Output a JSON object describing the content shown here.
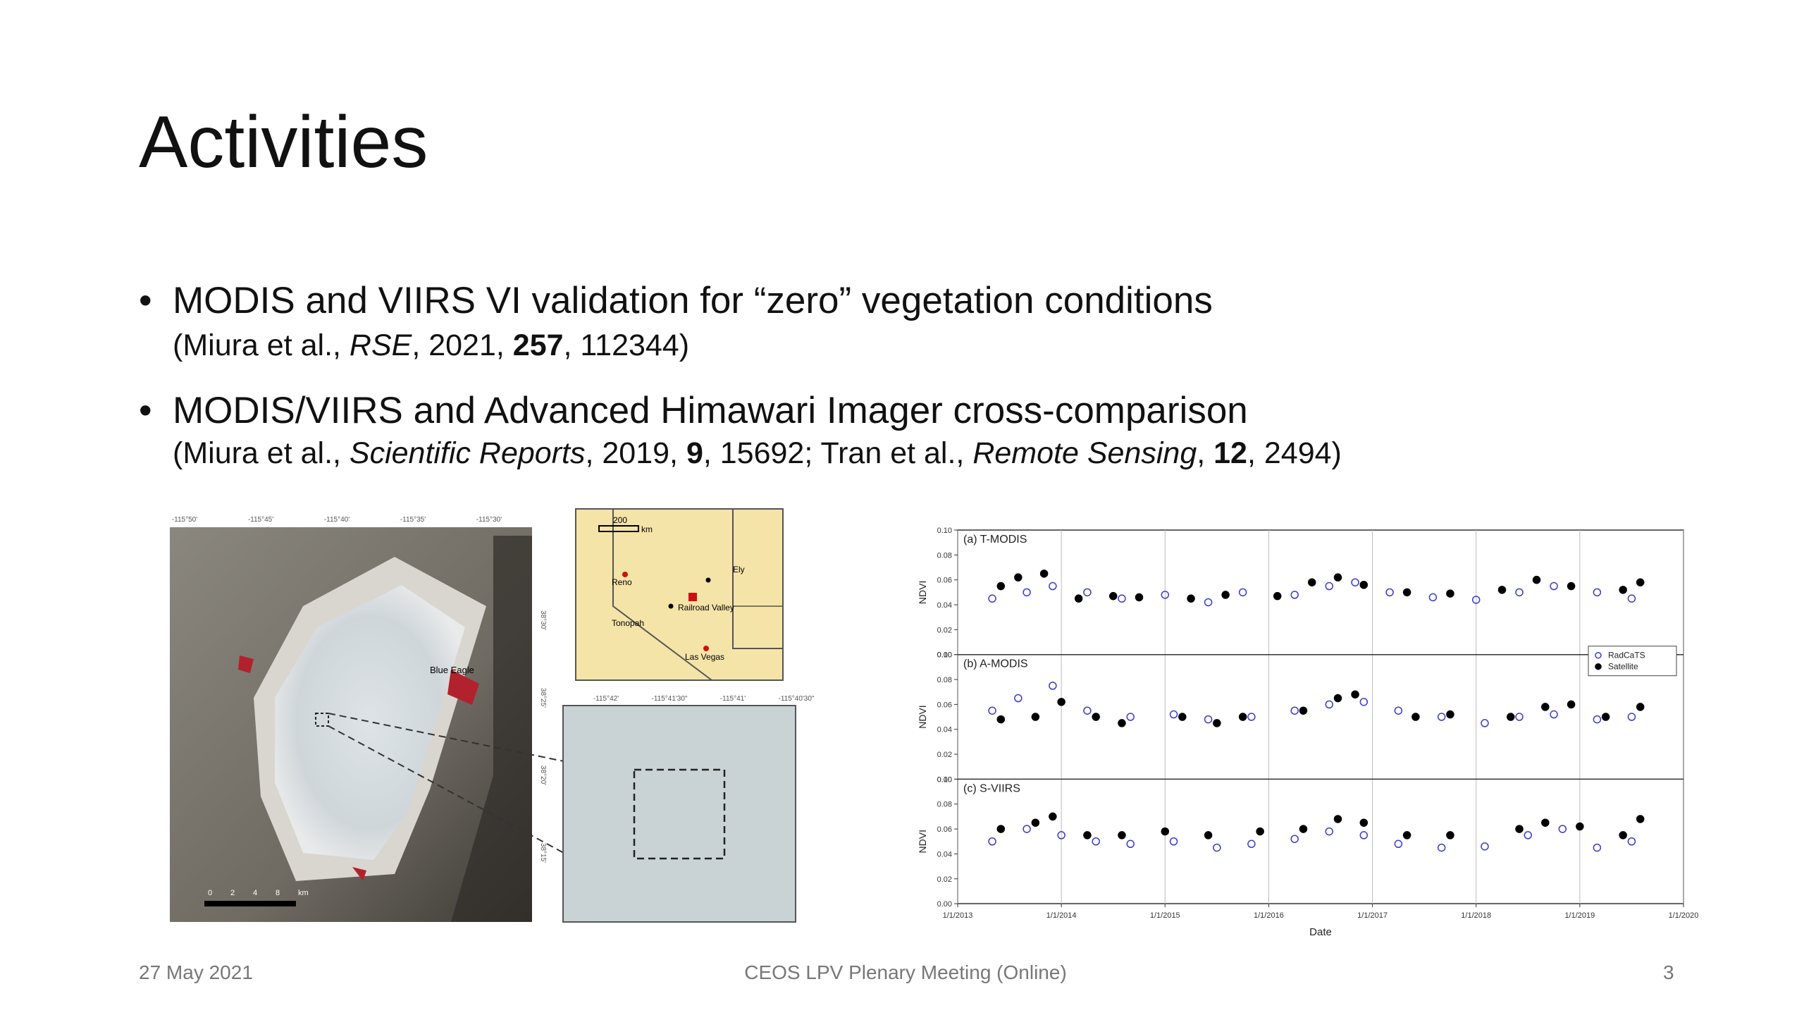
{
  "slide": {
    "title": "Activities",
    "bullets": [
      {
        "text": "MODIS and VIIRS VI validation for “zero” vegetation conditions",
        "citation": [
          "(Miura et al., ",
          "RSE",
          ", 2021, ",
          "257",
          ", 112344)"
        ]
      },
      {
        "text": "MODIS/VIIRS and Advanced Himawari Imager cross-comparison",
        "citation": [
          "(Miura et al., ",
          "Scientific Reports",
          ", 2019, ",
          "9",
          ", 15692; Tran et al., ",
          "Remote Sensing",
          ", ",
          "12",
          ", 2494)"
        ]
      }
    ],
    "footer": {
      "date": "27 May 2021",
      "center": "CEOS LPV Plenary Meeting (Online)",
      "page": "3"
    }
  },
  "figures": {
    "site_map": {
      "top_labels": [
        "-115°50'",
        "-115°45'",
        "-115°40'",
        "-115°35'",
        "-115°30'"
      ],
      "side_labels": [
        "38°30'",
        "38°25'",
        "38°20'",
        "38°15'"
      ],
      "site_label": "Blue Eagle",
      "scale": [
        "0",
        "2",
        "4",
        "8",
        "km"
      ]
    },
    "inset_map": {
      "scale": [
        "200",
        "km"
      ],
      "places": [
        "Reno",
        "Ely",
        "Railroad Valley",
        "Tonopah",
        "Las Vegas"
      ]
    },
    "zoom_map": {
      "top_labels": [
        "-115°42'",
        "-115°41'30\"",
        "-115°41'",
        "-115°40'30\""
      ]
    }
  },
  "chart_data": [
    {
      "type": "scatter",
      "title": "(a) T-MODIS",
      "ylabel": "NDVI",
      "xlim": [
        "1/1/2013",
        "1/1/2020"
      ],
      "ylim": [
        0,
        0.1
      ],
      "yticks": [
        {
          "value": 0,
          "label": "0.00"
        },
        0.02,
        0.04,
        0.06,
        0.08,
        {
          "value": 0.1,
          "label": "0.10"
        }
      ],
      "series": [
        {
          "name": "RadCaTS",
          "color": "#3a3ad0",
          "marker": "open",
          "x": [
            "5/1/2013",
            "9/1/2013",
            "12/1/2013",
            "4/1/2014",
            "8/1/2014",
            "1/1/2015",
            "6/1/2015",
            "10/1/2015",
            "4/1/2016",
            "8/1/2016",
            "11/1/2016",
            "3/1/2017",
            "8/1/2017",
            "1/1/2018",
            "6/1/2018",
            "10/1/2018",
            "3/1/2019",
            "7/1/2019"
          ],
          "values": [
            0.045,
            0.05,
            0.055,
            0.05,
            0.045,
            0.048,
            0.042,
            0.05,
            0.048,
            0.055,
            0.058,
            0.05,
            0.046,
            0.044,
            0.05,
            0.055,
            0.05,
            0.045
          ]
        },
        {
          "name": "Satellite",
          "color": "#000000",
          "marker": "filled",
          "x": [
            "6/1/2013",
            "8/1/2013",
            "11/1/2013",
            "3/1/2014",
            "7/1/2014",
            "10/1/2014",
            "4/1/2015",
            "8/1/2015",
            "2/1/2016",
            "6/1/2016",
            "9/1/2016",
            "12/1/2016",
            "5/1/2017",
            "10/1/2017",
            "4/1/2018",
            "8/1/2018",
            "12/1/2018",
            "6/1/2019",
            "8/1/2019"
          ],
          "values": [
            0.055,
            0.062,
            0.065,
            0.045,
            0.047,
            0.046,
            0.045,
            0.048,
            0.047,
            0.058,
            0.062,
            0.056,
            0.05,
            0.049,
            0.052,
            0.06,
            0.055,
            0.052,
            0.058
          ]
        }
      ]
    },
    {
      "type": "scatter",
      "title": "(b) A-MODIS",
      "ylabel": "NDVI",
      "xlim": [
        "1/1/2013",
        "1/1/2020"
      ],
      "legend": "upper right",
      "ylim": [
        0,
        0.1
      ],
      "yticks": [
        {
          "value": 0,
          "label": "0.00"
        },
        0.02,
        0.04,
        0.06,
        0.08,
        {
          "value": 0.1,
          "label": "0.10"
        }
      ],
      "series": [
        {
          "name": "RadCaTS",
          "color": "#3a3ad0",
          "marker": "open",
          "x": [
            "5/1/2013",
            "8/1/2013",
            "12/1/2013",
            "4/1/2014",
            "9/1/2014",
            "2/1/2015",
            "6/1/2015",
            "11/1/2015",
            "4/1/2016",
            "8/1/2016",
            "12/1/2016",
            "4/1/2017",
            "9/1/2017",
            "2/1/2018",
            "6/1/2018",
            "10/1/2018",
            "3/1/2019",
            "7/1/2019"
          ],
          "values": [
            0.055,
            0.065,
            0.075,
            0.055,
            0.05,
            0.052,
            0.048,
            0.05,
            0.055,
            0.06,
            0.062,
            0.055,
            0.05,
            0.045,
            0.05,
            0.052,
            0.048,
            0.05
          ]
        },
        {
          "name": "Satellite",
          "color": "#000000",
          "marker": "filled",
          "x": [
            "6/1/2013",
            "10/1/2013",
            "1/1/2014",
            "5/1/2014",
            "8/1/2014",
            "3/1/2015",
            "7/1/2015",
            "10/1/2015",
            "5/1/2016",
            "9/1/2016",
            "11/1/2016",
            "6/1/2017",
            "10/1/2017",
            "5/1/2018",
            "9/1/2018",
            "12/1/2018",
            "4/1/2019",
            "8/1/2019"
          ],
          "values": [
            0.048,
            0.05,
            0.062,
            0.05,
            0.045,
            0.05,
            0.045,
            0.05,
            0.055,
            0.065,
            0.068,
            0.05,
            0.052,
            0.05,
            0.058,
            0.06,
            0.05,
            0.058
          ]
        }
      ]
    },
    {
      "type": "scatter",
      "title": "(c) S-VIIRS",
      "ylabel": "NDVI",
      "xlabel": "Date",
      "xlim": [
        "1/1/2013",
        "1/1/2020"
      ],
      "xticks": [
        "1/1/2013",
        "1/1/2014",
        "1/1/2015",
        "1/1/2016",
        "1/1/2017",
        "1/1/2018",
        "1/1/2019",
        "1/1/2020"
      ],
      "ylim": [
        0,
        0.1
      ],
      "yticks": [
        {
          "value": 0,
          "label": "0.00"
        },
        0.02,
        0.04,
        0.06,
        0.08,
        {
          "value": 0.1,
          "label": "0.10"
        }
      ],
      "series": [
        {
          "name": "RadCaTS",
          "color": "#3a3ad0",
          "marker": "open",
          "x": [
            "5/1/2013",
            "9/1/2013",
            "1/1/2014",
            "5/1/2014",
            "9/1/2014",
            "2/1/2015",
            "7/1/2015",
            "11/1/2015",
            "4/1/2016",
            "8/1/2016",
            "12/1/2016",
            "4/1/2017",
            "9/1/2017",
            "2/1/2018",
            "7/1/2018",
            "11/1/2018",
            "3/1/2019",
            "7/1/2019"
          ],
          "values": [
            0.05,
            0.06,
            0.055,
            0.05,
            0.048,
            0.05,
            0.045,
            0.048,
            0.052,
            0.058,
            0.055,
            0.048,
            0.045,
            0.046,
            0.055,
            0.06,
            0.045,
            0.05
          ]
        },
        {
          "name": "Satellite",
          "color": "#000000",
          "marker": "filled",
          "x": [
            "6/1/2013",
            "10/1/2013",
            "12/1/2013",
            "4/1/2014",
            "8/1/2014",
            "1/1/2015",
            "6/1/2015",
            "12/1/2015",
            "5/1/2016",
            "9/1/2016",
            "12/1/2016",
            "5/1/2017",
            "10/1/2017",
            "6/1/2018",
            "9/1/2018",
            "1/1/2019",
            "6/1/2019",
            "8/1/2019"
          ],
          "values": [
            0.06,
            0.065,
            0.07,
            0.055,
            0.055,
            0.058,
            0.055,
            0.058,
            0.06,
            0.068,
            0.065,
            0.055,
            0.055,
            0.06,
            0.065,
            0.062,
            0.055,
            0.068
          ]
        }
      ]
    }
  ]
}
